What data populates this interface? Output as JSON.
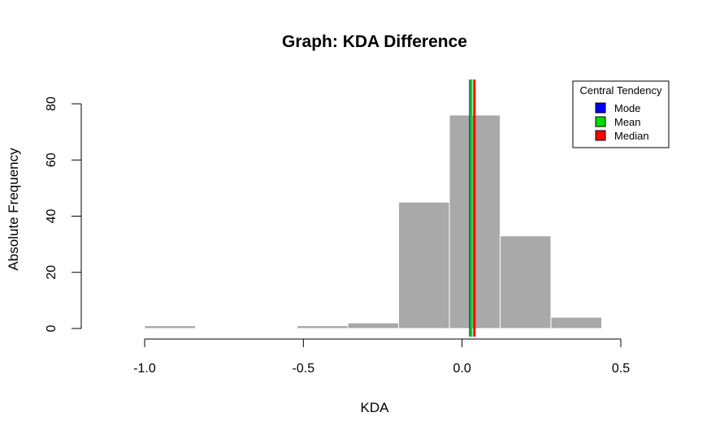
{
  "chart_data": {
    "type": "bar",
    "title": "Graph: KDA Difference",
    "xlabel": "KDA",
    "ylabel": "Absolute Frequency",
    "xlim": [
      -1.0,
      0.5
    ],
    "ylim": [
      0,
      80
    ],
    "x_ticks": [
      -1.0,
      -0.5,
      0.0,
      0.5
    ],
    "x_tick_labels": [
      "-1.0",
      "-0.5",
      "0.0",
      "0.5"
    ],
    "y_ticks": [
      0,
      20,
      40,
      60,
      80
    ],
    "y_tick_labels": [
      "0",
      "20",
      "40",
      "60",
      "80"
    ],
    "bins": [
      {
        "start": -1.0,
        "end": -0.84,
        "count": 1
      },
      {
        "start": -0.84,
        "end": -0.68,
        "count": 0
      },
      {
        "start": -0.68,
        "end": -0.52,
        "count": 0
      },
      {
        "start": -0.52,
        "end": -0.36,
        "count": 1
      },
      {
        "start": -0.36,
        "end": -0.2,
        "count": 2
      },
      {
        "start": -0.2,
        "end": -0.04,
        "count": 45
      },
      {
        "start": -0.04,
        "end": 0.12,
        "count": 76
      },
      {
        "start": 0.12,
        "end": 0.28,
        "count": 33
      },
      {
        "start": 0.28,
        "end": 0.44,
        "count": 4
      }
    ],
    "bar_color": "#a9a9a9",
    "grid": false,
    "reference_lines": [
      {
        "name": "Mode",
        "value": 0.03,
        "color": "#0000ff"
      },
      {
        "name": "Mean",
        "value": 0.03,
        "color": "#00dd00"
      },
      {
        "name": "Median",
        "value": 0.035,
        "color": "#ff0000"
      }
    ],
    "legend": {
      "title": "Central Tendency",
      "placement": "top-right",
      "entries": [
        {
          "label": "Mode",
          "color": "#0000ff"
        },
        {
          "label": "Mean",
          "color": "#00dd00"
        },
        {
          "label": "Median",
          "color": "#ff0000"
        }
      ]
    }
  }
}
